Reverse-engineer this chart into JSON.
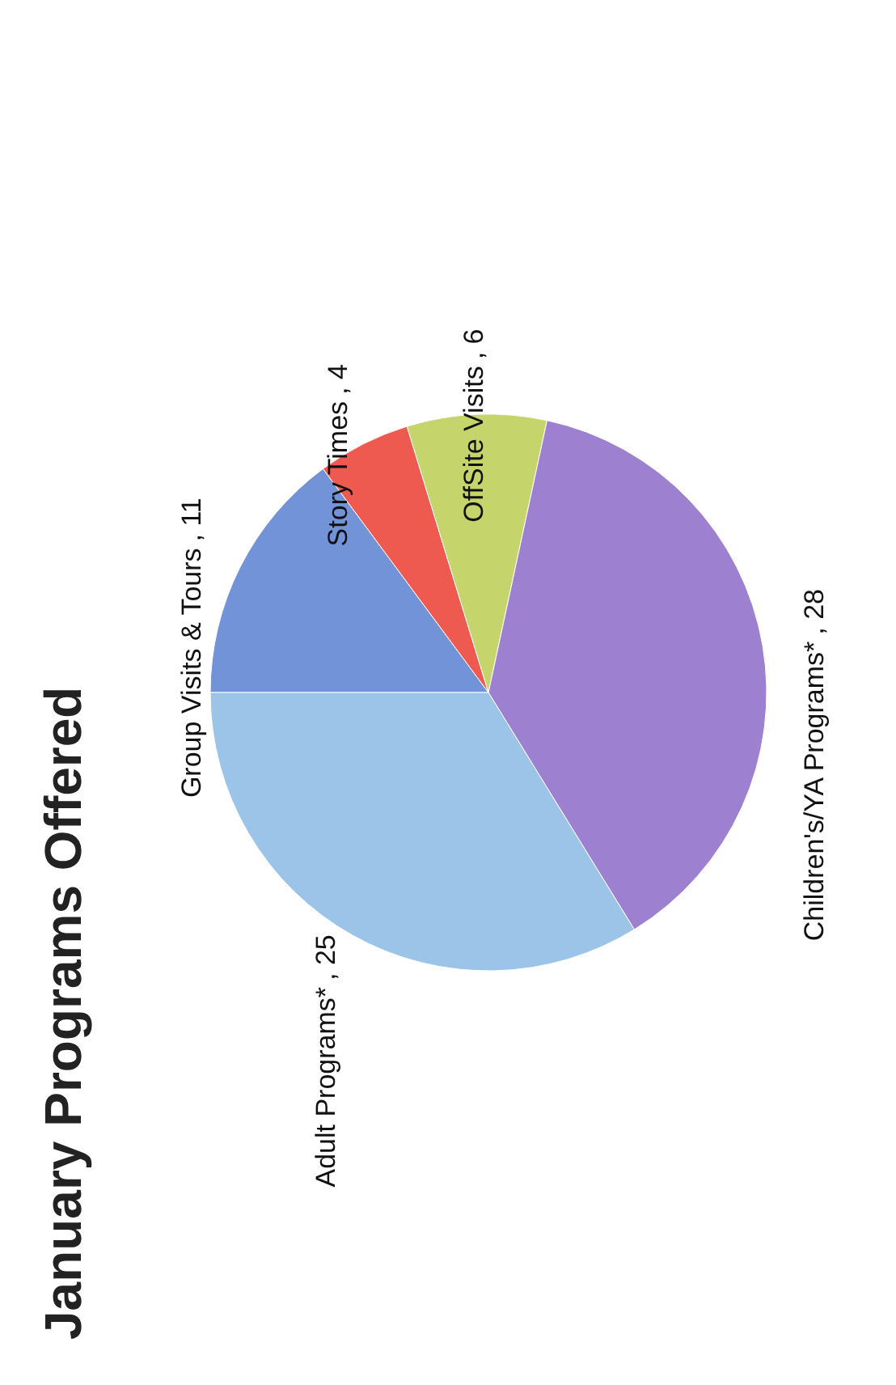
{
  "chart_data": {
    "type": "pie",
    "title": "January Programs Offered",
    "categories": [
      "Group Visits & Tours",
      "Story Times",
      "OffSite Visits",
      "Children's/YA Programs*",
      "Adult Programs*"
    ],
    "values": [
      11,
      4,
      6,
      28,
      25
    ],
    "value_labels": [
      ", 11",
      ", 4",
      ", 6",
      ", 28",
      ", 25"
    ],
    "colors": [
      "#7393d9",
      "#ee5a50",
      "#c5d56c",
      "#9d80cf",
      "#9cc4e8"
    ]
  }
}
